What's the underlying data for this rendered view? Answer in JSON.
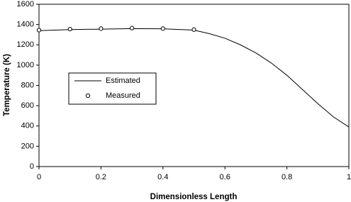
{
  "chart_data": {
    "type": "line",
    "x_label": "Dimensionless Length",
    "y_label": "Temperature (K)",
    "xlim": [
      0,
      1
    ],
    "xticks": [
      0,
      0.2,
      0.4,
      0.6,
      0.8,
      1
    ],
    "ylim": [
      0,
      1600
    ],
    "yticks": [
      0,
      200,
      400,
      600,
      800,
      1000,
      1200,
      1400,
      1600
    ],
    "grid": false,
    "legend_position": "center-left",
    "series": [
      {
        "name": "Estimated",
        "color": "#000000",
        "style": "line",
        "x": [
          0,
          0.05,
          0.1,
          0.2,
          0.3,
          0.4,
          0.5,
          0.55,
          0.6,
          0.65,
          0.7,
          0.75,
          0.8,
          0.85,
          0.9,
          0.95,
          1
        ],
        "values": [
          1340,
          1345,
          1350,
          1355,
          1360,
          1358,
          1345,
          1310,
          1265,
          1200,
          1120,
          1020,
          900,
          760,
          620,
          490,
          390
        ]
      },
      {
        "name": "Measured",
        "color": "#000000",
        "style": "marker",
        "x": [
          0,
          0.1,
          0.2,
          0.3,
          0.4,
          0.5
        ],
        "values": [
          1345,
          1355,
          1360,
          1365,
          1360,
          1350
        ]
      }
    ]
  }
}
